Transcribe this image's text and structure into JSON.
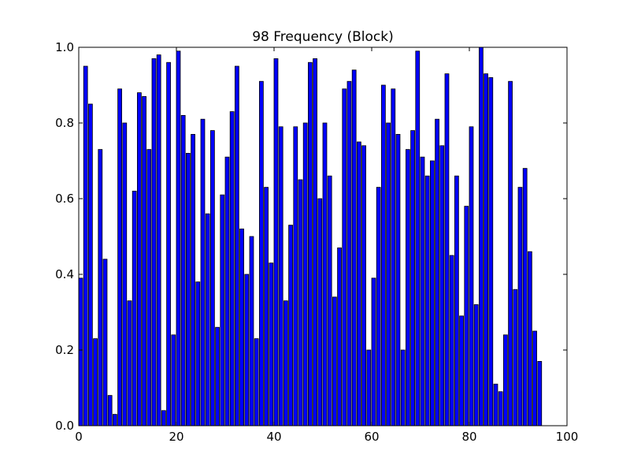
{
  "chart_data": {
    "type": "bar",
    "title": "98 Frequency (Block)",
    "xlabel": "",
    "ylabel": "",
    "xlim": [
      0,
      100
    ],
    "ylim": [
      0.0,
      1.0
    ],
    "bar_width": 0.8,
    "bar_color": "#0000ff",
    "edge_color": "#000000",
    "grid": false,
    "legend": "none",
    "x_ticks": [
      0,
      20,
      40,
      60,
      80,
      100
    ],
    "x_tick_labels": [
      "0",
      "20",
      "40",
      "60",
      "80",
      "100"
    ],
    "y_ticks": [
      0.0,
      0.2,
      0.4,
      0.6,
      0.8,
      1.0
    ],
    "y_tick_labels": [
      "0.0",
      "0.2",
      "0.4",
      "0.6",
      "0.8",
      "1.0"
    ],
    "x": [
      0,
      1,
      2,
      3,
      4,
      5,
      6,
      7,
      8,
      9,
      10,
      11,
      12,
      13,
      14,
      15,
      16,
      17,
      18,
      19,
      20,
      21,
      22,
      23,
      24,
      25,
      26,
      27,
      28,
      29,
      30,
      31,
      32,
      33,
      34,
      35,
      36,
      37,
      38,
      39,
      40,
      41,
      42,
      43,
      44,
      45,
      46,
      47,
      48,
      49,
      50,
      51,
      52,
      53,
      54,
      55,
      56,
      57,
      58,
      59,
      60,
      61,
      62,
      63,
      64,
      65,
      66,
      67,
      68,
      69,
      70,
      71,
      72,
      73,
      74,
      75,
      76,
      77,
      78,
      79,
      80,
      81,
      82,
      83,
      84,
      85,
      86,
      87,
      88,
      89,
      90,
      91,
      92,
      93,
      94
    ],
    "values": [
      0.39,
      0.95,
      0.85,
      0.23,
      0.73,
      0.44,
      0.08,
      0.03,
      0.89,
      0.8,
      0.33,
      0.62,
      0.88,
      0.87,
      0.73,
      0.97,
      0.98,
      0.04,
      0.96,
      0.24,
      0.99,
      0.82,
      0.72,
      0.77,
      0.38,
      0.81,
      0.56,
      0.78,
      0.26,
      0.61,
      0.71,
      0.83,
      0.95,
      0.52,
      0.4,
      0.5,
      0.23,
      0.91,
      0.63,
      0.43,
      0.97,
      0.79,
      0.33,
      0.53,
      0.79,
      0.65,
      0.8,
      0.96,
      0.97,
      0.6,
      0.8,
      0.66,
      0.34,
      0.47,
      0.89,
      0.91,
      0.94,
      0.75,
      0.74,
      0.2,
      0.39,
      0.63,
      0.9,
      0.8,
      0.89,
      0.77,
      0.2,
      0.73,
      0.78,
      0.99,
      0.71,
      0.66,
      0.7,
      0.81,
      0.74,
      0.93,
      0.45,
      0.66,
      0.29,
      0.58,
      0.79,
      0.32,
      1.0,
      0.93,
      0.92,
      0.11,
      0.09,
      0.24,
      0.91,
      0.36,
      0.63,
      0.68,
      0.46,
      0.25,
      0.17
    ]
  }
}
